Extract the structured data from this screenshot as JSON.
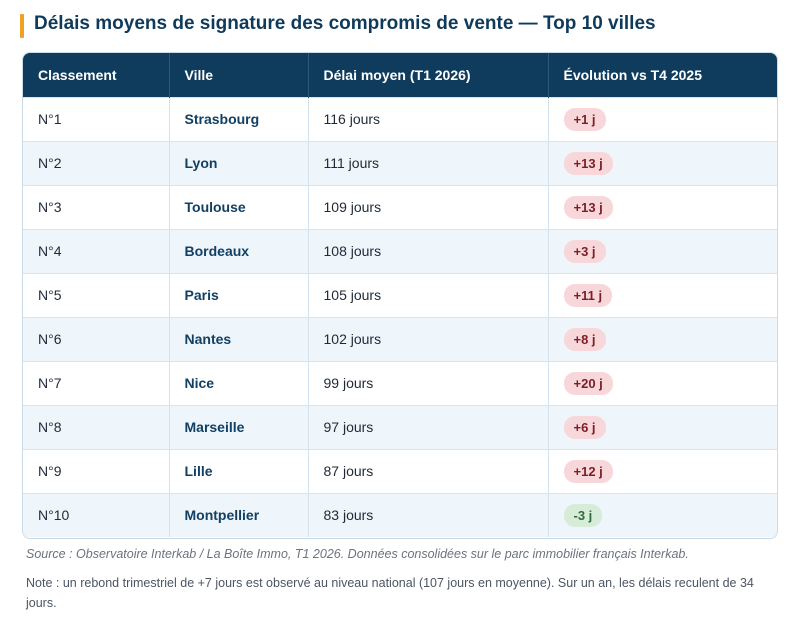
{
  "title": "Délais moyens de signature des compromis de vente — Top 10 villes",
  "table": {
    "headers": [
      "Classement",
      "Ville",
      "Délai moyen (T1 2026)",
      "Évolution vs T4 2025"
    ],
    "rows": [
      {
        "rank": "N°1",
        "city": "Strasbourg",
        "delay": "116 jours",
        "change": "+1 j",
        "trend": "up"
      },
      {
        "rank": "N°2",
        "city": "Lyon",
        "delay": "111 jours",
        "change": "+13 j",
        "trend": "up"
      },
      {
        "rank": "N°3",
        "city": "Toulouse",
        "delay": "109 jours",
        "change": "+13 j",
        "trend": "up"
      },
      {
        "rank": "N°4",
        "city": "Bordeaux",
        "delay": "108 jours",
        "change": "+3 j",
        "trend": "up"
      },
      {
        "rank": "N°5",
        "city": "Paris",
        "delay": "105 jours",
        "change": "+11 j",
        "trend": "up"
      },
      {
        "rank": "N°6",
        "city": "Nantes",
        "delay": "102 jours",
        "change": "+8 j",
        "trend": "up"
      },
      {
        "rank": "N°7",
        "city": "Nice",
        "delay": "99 jours",
        "change": "+20 j",
        "trend": "up"
      },
      {
        "rank": "N°8",
        "city": "Marseille",
        "delay": "97 jours",
        "change": "+6 j",
        "trend": "up"
      },
      {
        "rank": "N°9",
        "city": "Lille",
        "delay": "87 jours",
        "change": "+12 j",
        "trend": "up"
      },
      {
        "rank": "N°10",
        "city": "Montpellier",
        "delay": "83 jours",
        "change": "-3 j",
        "trend": "down"
      }
    ]
  },
  "source": "Source : Observatoire Interkab / La Boîte Immo, T1 2026. Données consolidées sur le parc immobilier français Interkab.",
  "note": "Note : un rebond trimestriel de +7 jours est observé au niveau national (107 jours en moyenne). Sur un an, les délais reculent de 34 jours.",
  "colors": {
    "accent": "#f0a11f",
    "header_bg": "#0f3c5c",
    "increase_badge": "#f8d7da",
    "decrease_badge": "#d6ecd8"
  }
}
